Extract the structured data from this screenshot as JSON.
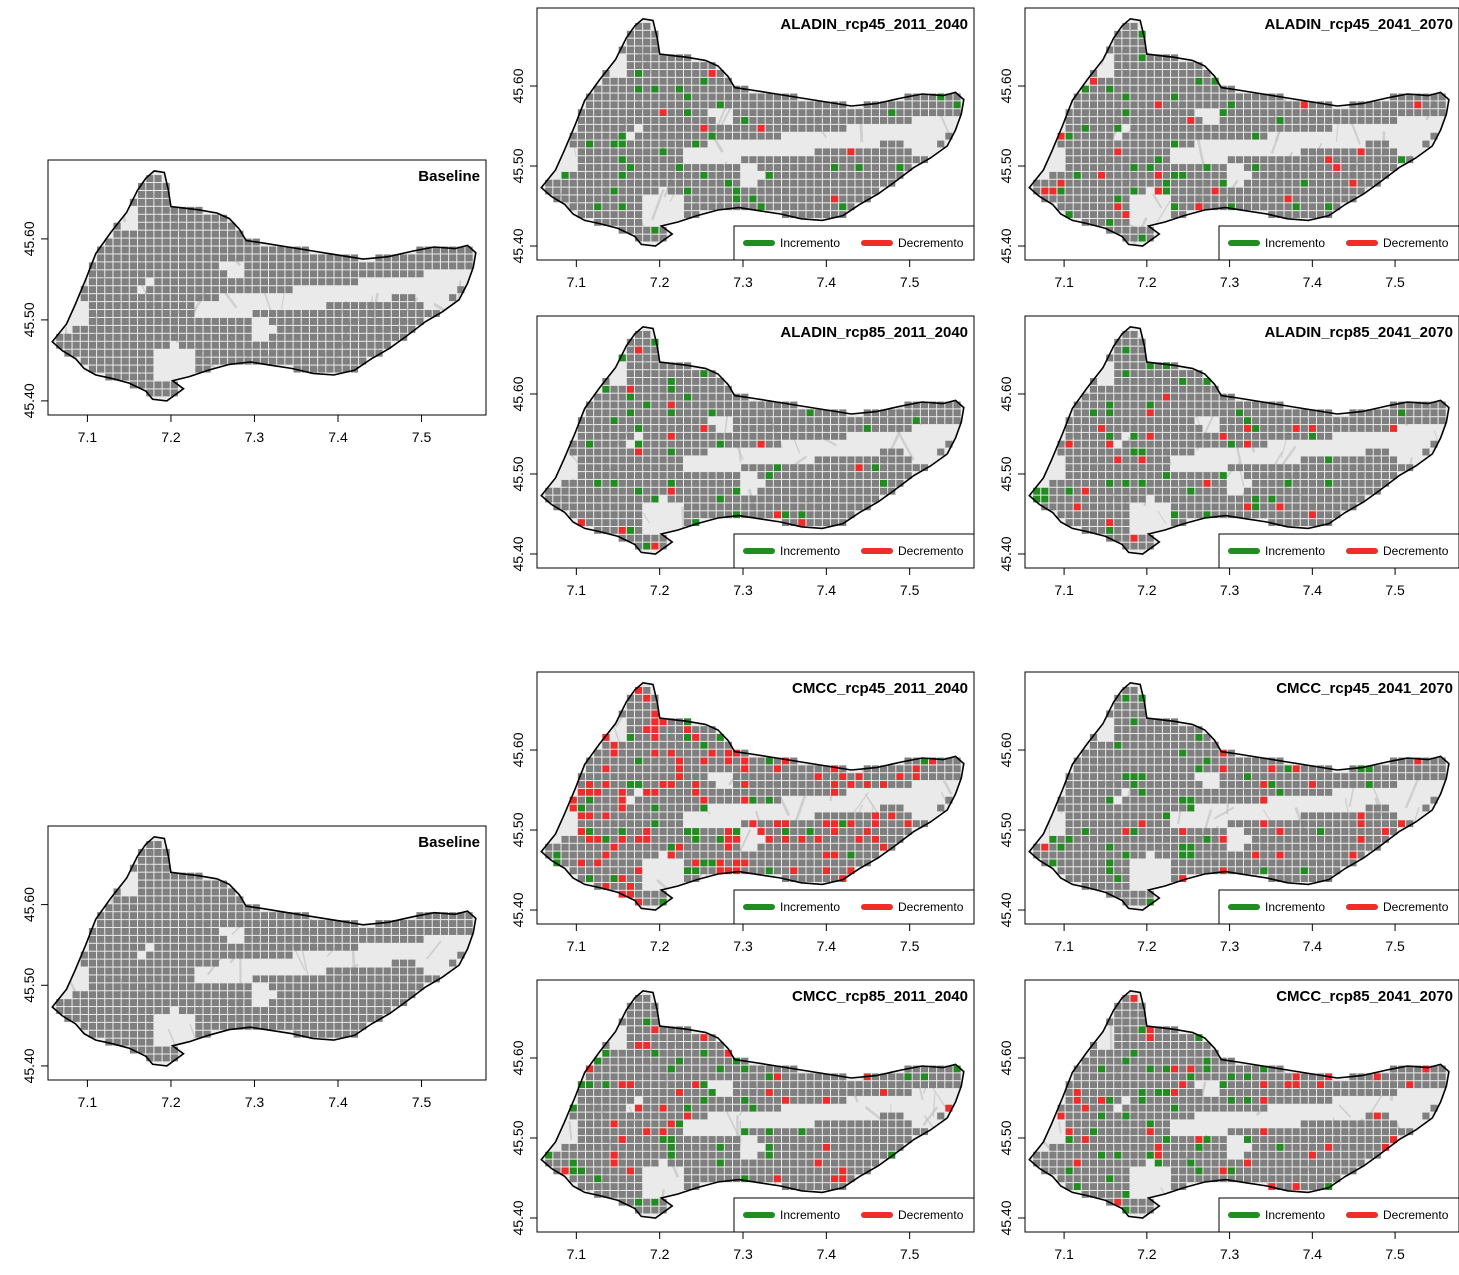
{
  "colors": {
    "presence": "#7f7f7f",
    "increase": "#228b22",
    "decrease": "#ee2c2c",
    "hillshade_light": "#eaeaea",
    "hillshade_dark": "#c4c4c4",
    "outline": "#000000"
  },
  "axes": {
    "x_ticks": [
      "7.1",
      "7.2",
      "7.3",
      "7.4",
      "7.5"
    ],
    "y_ticks": [
      "45.40",
      "45.50",
      "45.60"
    ],
    "xlim": [
      7.06,
      7.57
    ],
    "ylim": [
      45.39,
      45.69
    ]
  },
  "legend": {
    "increase_label": "Incremento",
    "decrease_label": "Decremento"
  },
  "panels": [
    {
      "title": "Baseline",
      "group": "ALADIN",
      "has_legend": false,
      "n_increase": 0,
      "n_decrease": 0
    },
    {
      "title": "ALADIN_rcp45_2011_2040",
      "group": "ALADIN",
      "has_legend": true,
      "n_increase": 40,
      "n_decrease": 6
    },
    {
      "title": "ALADIN_rcp45_2041_2070",
      "group": "ALADIN",
      "has_legend": true,
      "n_increase": 40,
      "n_decrease": 22
    },
    {
      "title": "ALADIN_rcp85_2011_2040",
      "group": "ALADIN",
      "has_legend": true,
      "n_increase": 38,
      "n_decrease": 14
    },
    {
      "title": "ALADIN_rcp85_2041_2070",
      "group": "ALADIN",
      "has_legend": true,
      "n_increase": 40,
      "n_decrease": 22
    },
    {
      "title": "Baseline",
      "group": "CMCC",
      "has_legend": false,
      "n_increase": 0,
      "n_decrease": 0
    },
    {
      "title": "CMCC_rcp45_2011_2040",
      "group": "CMCC",
      "has_legend": true,
      "n_increase": 40,
      "n_decrease": 120
    },
    {
      "title": "CMCC_rcp45_2041_2070",
      "group": "CMCC",
      "has_legend": true,
      "n_increase": 45,
      "n_decrease": 25
    },
    {
      "title": "CMCC_rcp85_2011_2040",
      "group": "CMCC",
      "has_legend": true,
      "n_increase": 45,
      "n_decrease": 35
    },
    {
      "title": "CMCC_rcp85_2041_2070",
      "group": "CMCC",
      "has_legend": true,
      "n_increase": 45,
      "n_decrease": 40
    }
  ]
}
